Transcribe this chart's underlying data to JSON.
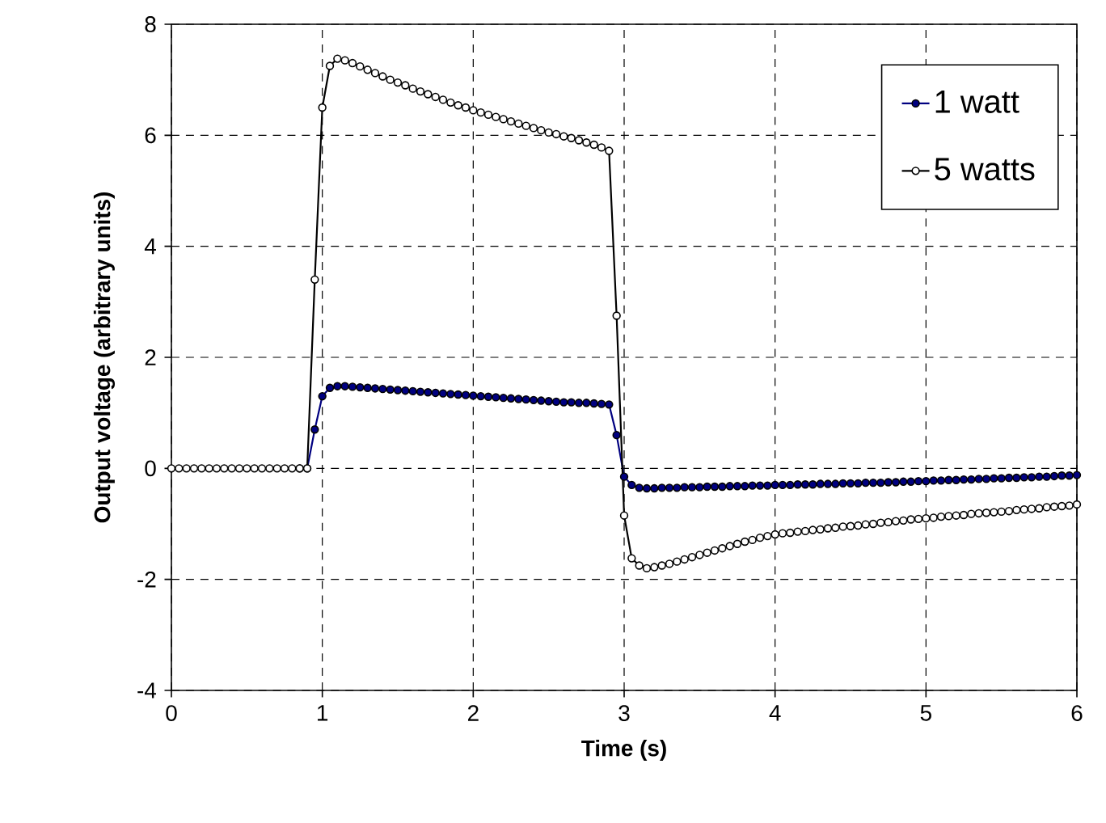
{
  "chart_data": {
    "type": "line",
    "xlabel": "Time (s)",
    "ylabel": "Output voltage (arbitrary units)",
    "x": [
      0,
      0.05,
      0.1,
      0.15,
      0.2,
      0.25,
      0.3,
      0.35,
      0.4,
      0.45,
      0.5,
      0.55,
      0.6,
      0.65,
      0.7,
      0.75,
      0.8,
      0.85,
      0.9,
      0.95,
      1,
      1.05,
      1.1,
      1.15,
      1.2,
      1.25,
      1.3,
      1.35,
      1.4,
      1.45,
      1.5,
      1.55,
      1.6,
      1.65,
      1.7,
      1.75,
      1.8,
      1.85,
      1.9,
      1.95,
      2,
      2.05,
      2.1,
      2.15,
      2.2,
      2.25,
      2.3,
      2.35,
      2.4,
      2.45,
      2.5,
      2.55,
      2.6,
      2.65,
      2.7,
      2.75,
      2.8,
      2.85,
      2.9,
      2.95,
      3,
      3.05,
      3.1,
      3.15,
      3.2,
      3.25,
      3.3,
      3.35,
      3.4,
      3.45,
      3.5,
      3.55,
      3.6,
      3.65,
      3.7,
      3.75,
      3.8,
      3.85,
      3.9,
      3.95,
      4,
      4.05,
      4.1,
      4.15,
      4.2,
      4.25,
      4.3,
      4.35,
      4.4,
      4.45,
      4.5,
      4.55,
      4.6,
      4.65,
      4.7,
      4.75,
      4.8,
      4.85,
      4.9,
      4.95,
      5,
      5.05,
      5.1,
      5.15,
      5.2,
      5.25,
      5.3,
      5.35,
      5.4,
      5.45,
      5.5,
      5.55,
      5.6,
      5.65,
      5.7,
      5.75,
      5.8,
      5.85,
      5.9,
      5.95,
      6
    ],
    "series": [
      {
        "name": "1 watt",
        "color": "#000080",
        "marker": "circle",
        "values": [
          null,
          null,
          null,
          null,
          null,
          null,
          null,
          null,
          null,
          null,
          null,
          null,
          null,
          null,
          null,
          null,
          null,
          0,
          0,
          0.7,
          1.3,
          1.45,
          1.48,
          1.48,
          1.47,
          1.46,
          1.45,
          1.44,
          1.43,
          1.42,
          1.41,
          1.4,
          1.39,
          1.38,
          1.37,
          1.36,
          1.35,
          1.34,
          1.33,
          1.32,
          1.31,
          1.3,
          1.29,
          1.28,
          1.27,
          1.26,
          1.25,
          1.24,
          1.23,
          1.22,
          1.21,
          1.2,
          1.19,
          1.19,
          1.18,
          1.18,
          1.17,
          1.16,
          1.15,
          0.6,
          -0.15,
          -0.3,
          -0.35,
          -0.36,
          -0.36,
          -0.35,
          -0.35,
          -0.35,
          -0.34,
          -0.34,
          -0.34,
          -0.33,
          -0.33,
          -0.33,
          -0.32,
          -0.32,
          -0.32,
          -0.31,
          -0.31,
          -0.31,
          -0.3,
          -0.3,
          -0.3,
          -0.29,
          -0.29,
          -0.29,
          -0.28,
          -0.28,
          -0.28,
          -0.27,
          -0.27,
          -0.27,
          -0.26,
          -0.26,
          -0.26,
          -0.25,
          -0.25,
          -0.24,
          -0.24,
          -0.23,
          -0.23,
          -0.22,
          -0.22,
          -0.21,
          -0.21,
          -0.2,
          -0.2,
          -0.19,
          -0.19,
          -0.18,
          -0.18,
          -0.17,
          -0.17,
          -0.16,
          -0.16,
          -0.15,
          -0.15,
          -0.14,
          -0.13,
          -0.13,
          -0.12
        ]
      },
      {
        "name": "5 watts",
        "color": "#000000",
        "marker": "circle",
        "values": [
          0,
          0,
          0,
          0,
          0,
          0,
          0,
          0,
          0,
          0,
          0,
          0,
          0,
          0,
          0,
          0,
          0,
          0,
          0,
          3.4,
          6.5,
          7.25,
          7.38,
          7.35,
          7.3,
          7.24,
          7.18,
          7.12,
          7.06,
          7.0,
          6.95,
          6.9,
          6.84,
          6.79,
          6.74,
          6.69,
          6.64,
          6.59,
          6.54,
          6.5,
          6.45,
          6.41,
          6.37,
          6.33,
          6.29,
          6.25,
          6.21,
          6.17,
          6.13,
          6.09,
          6.05,
          6.02,
          5.98,
          5.95,
          5.91,
          5.87,
          5.83,
          5.78,
          5.72,
          2.75,
          -0.85,
          -1.62,
          -1.75,
          -1.8,
          -1.78,
          -1.75,
          -1.72,
          -1.68,
          -1.64,
          -1.6,
          -1.56,
          -1.52,
          -1.48,
          -1.44,
          -1.4,
          -1.36,
          -1.32,
          -1.29,
          -1.25,
          -1.22,
          -1.19,
          -1.17,
          -1.16,
          -1.14,
          -1.13,
          -1.11,
          -1.1,
          -1.08,
          -1.07,
          -1.05,
          -1.04,
          -1.03,
          -1.01,
          -1.0,
          -0.98,
          -0.97,
          -0.95,
          -0.94,
          -0.92,
          -0.91,
          -0.9,
          -0.89,
          -0.87,
          -0.86,
          -0.85,
          -0.84,
          -0.82,
          -0.81,
          -0.8,
          -0.79,
          -0.78,
          -0.77,
          -0.75,
          -0.74,
          -0.73,
          -0.72,
          -0.7,
          -0.69,
          -0.68,
          -0.67,
          -0.65
        ]
      }
    ],
    "xlim": [
      0,
      6
    ],
    "ylim": [
      -4,
      8
    ],
    "xticks": [
      0,
      1,
      2,
      3,
      4,
      5,
      6
    ],
    "yticks": [
      -4,
      -2,
      0,
      2,
      4,
      6,
      8
    ],
    "grid": true,
    "legend": "top right",
    "line_style": "solid"
  }
}
